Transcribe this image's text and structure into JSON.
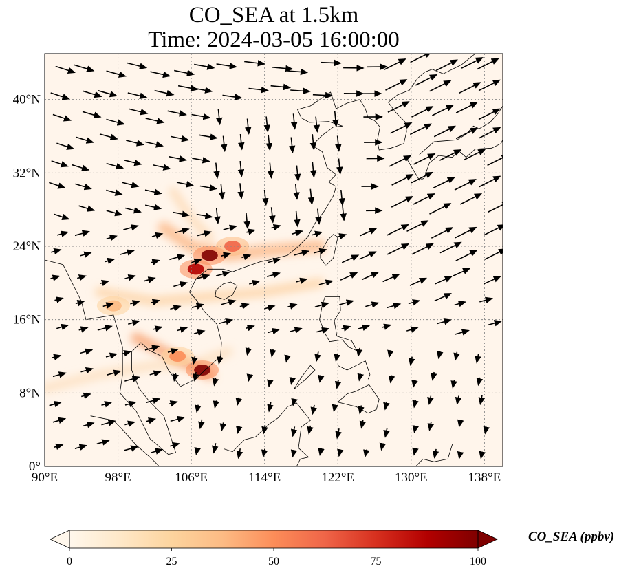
{
  "title_line1": "CO_SEA at 1.5km",
  "title_line2": "Time: 2024-03-05 16:00:00",
  "map": {
    "lon_range": [
      90,
      140
    ],
    "lat_range": [
      0,
      45
    ],
    "lon_ticks": [
      90,
      98,
      106,
      114,
      122,
      130,
      138
    ],
    "lon_labels": [
      "90°E",
      "98°E",
      "106°E",
      "114°E",
      "122°E",
      "130°E",
      "138°E"
    ],
    "lat_ticks": [
      0,
      8,
      16,
      24,
      32,
      40
    ],
    "lat_labels": [
      "0°",
      "8°N",
      "16°N",
      "24°N",
      "32°N",
      "40°N"
    ],
    "gridlines": true,
    "background_color": "#fff5eb",
    "hotspots": [
      {
        "lon": 107.2,
        "lat": 10.5,
        "intensity": 100
      },
      {
        "lon": 108.0,
        "lat": 23.0,
        "intensity": 100
      },
      {
        "lon": 106.5,
        "lat": 21.5,
        "intensity": 90
      },
      {
        "lon": 110.5,
        "lat": 24.0,
        "intensity": 60
      },
      {
        "lon": 104.5,
        "lat": 12.0,
        "intensity": 55
      },
      {
        "lon": 97.5,
        "lat": 17.5,
        "intensity": 40
      }
    ]
  },
  "colorbar": {
    "min": 0,
    "max": 100,
    "ticks": [
      0,
      25,
      50,
      75,
      100
    ],
    "tick_labels": [
      "0",
      "25",
      "50",
      "75",
      "100"
    ],
    "label": "CO_SEA (ppbv)",
    "colormap": "OrRd",
    "colors": [
      "#fff7ec",
      "#fee8c8",
      "#fdd49e",
      "#fdbb84",
      "#fc8d59",
      "#ef6548",
      "#d7301f",
      "#b30000",
      "#7f0000"
    ],
    "extend": "both"
  }
}
